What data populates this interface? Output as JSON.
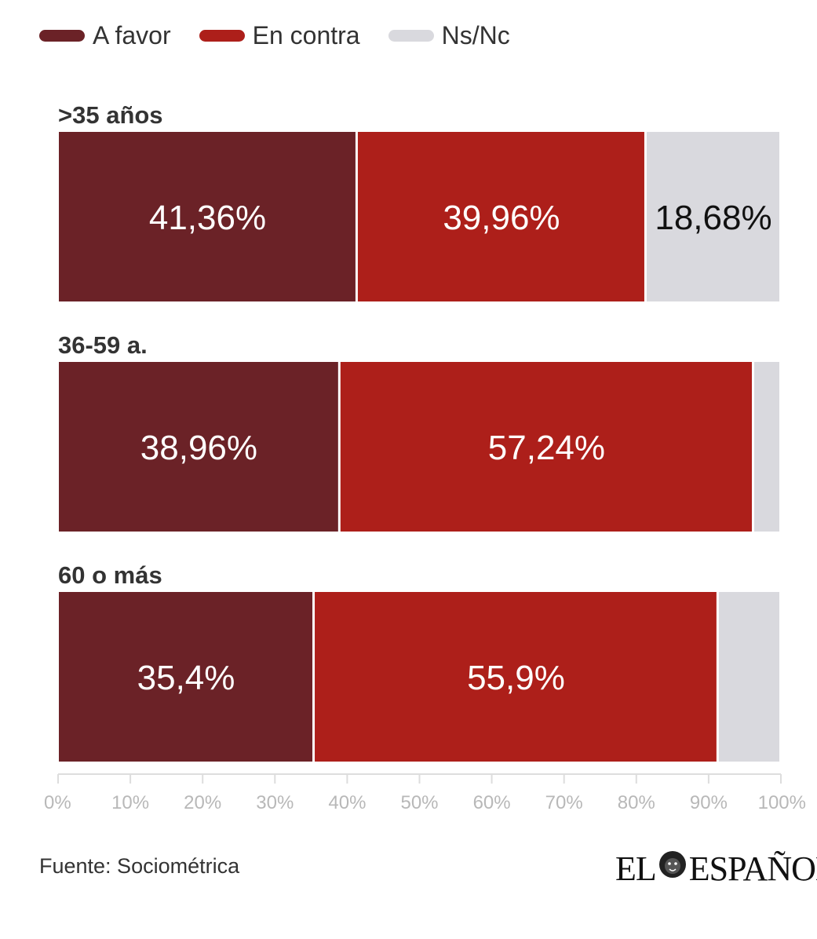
{
  "legend": [
    {
      "label": "A favor",
      "color": "#6b2227"
    },
    {
      "label": "En contra",
      "color": "#ad1f1a"
    },
    {
      "label": "Ns/Nc",
      "color": "#d9d9de"
    }
  ],
  "chart_data": {
    "type": "bar",
    "orientation": "horizontal",
    "stacked": true,
    "categories": [
      ">35 años",
      "36-59 a.",
      "60 o más"
    ],
    "series": [
      {
        "name": "A favor",
        "color": "#6b2227",
        "values": [
          41.36,
          38.96,
          35.4
        ],
        "labels": [
          "41,36%",
          "38,96%",
          "35,4%"
        ]
      },
      {
        "name": "En contra",
        "color": "#ad1f1a",
        "values": [
          39.96,
          57.24,
          55.9
        ],
        "labels": [
          "39,96%",
          "57,24%",
          "55,9%"
        ]
      },
      {
        "name": "Ns/Nc",
        "color": "#d9d9de",
        "values": [
          18.68,
          3.8,
          8.7
        ],
        "labels": [
          "18,68%",
          "",
          ""
        ]
      }
    ],
    "xlim": [
      0,
      100
    ],
    "xticks": [
      "0%",
      "10%",
      "20%",
      "30%",
      "40%",
      "50%",
      "60%",
      "70%",
      "80%",
      "90%",
      "100%"
    ],
    "grid": false,
    "legend_position": "top-left"
  },
  "source": "Fuente: Sociométrica",
  "logo": {
    "left": "EL",
    "right": "ESPAÑOL",
    "icon": "lion-head-icon"
  }
}
